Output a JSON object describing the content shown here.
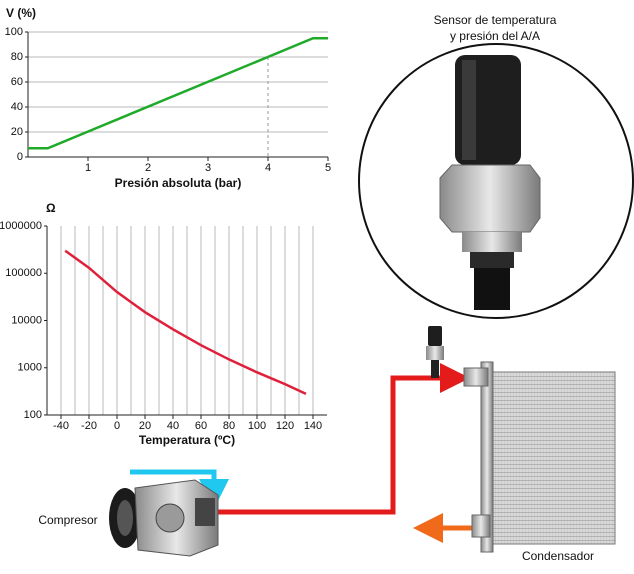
{
  "chart_data": [
    {
      "type": "line",
      "y_label": "V (%)",
      "x_label": "Presión absoluta (bar)",
      "x": [
        0,
        0.33,
        4.75,
        5
      ],
      "values": [
        7,
        7,
        95,
        95
      ],
      "color": "#1faa2a",
      "xlim": [
        0,
        5
      ],
      "xticks": [
        1,
        2,
        3,
        4,
        5
      ],
      "ylim": [
        0,
        100
      ],
      "yticks": [
        0,
        20,
        40,
        60,
        80,
        100
      ],
      "grid": "y",
      "marker_x": 4
    },
    {
      "type": "line",
      "y_label": "Ω",
      "x_label": "Temperatura (ºC)",
      "log_y": true,
      "x": [
        -37,
        -20,
        0,
        20,
        40,
        60,
        80,
        100,
        120,
        135
      ],
      "values": [
        300000,
        130000,
        40000,
        15000,
        6500,
        3000,
        1500,
        800,
        450,
        280
      ],
      "color": "#e0203a",
      "xlim": [
        -50,
        150
      ],
      "xticks": [
        -40,
        -20,
        0,
        20,
        40,
        60,
        80,
        100,
        120,
        140
      ],
      "xgrid": [
        -40,
        -30,
        -20,
        -10,
        0,
        10,
        20,
        30,
        40,
        50,
        60,
        70,
        80,
        90,
        100,
        110,
        120,
        130,
        140
      ],
      "ylim": [
        100,
        1000000
      ],
      "yticks": [
        100,
        1000,
        10000,
        100000,
        1000000
      ],
      "grid": "x"
    }
  ],
  "diagram": {
    "sensor_label": [
      "Sensor de temperatura",
      "y presión del A/A"
    ],
    "compressor_label": "Compresor",
    "condenser_label": "Condensador"
  }
}
